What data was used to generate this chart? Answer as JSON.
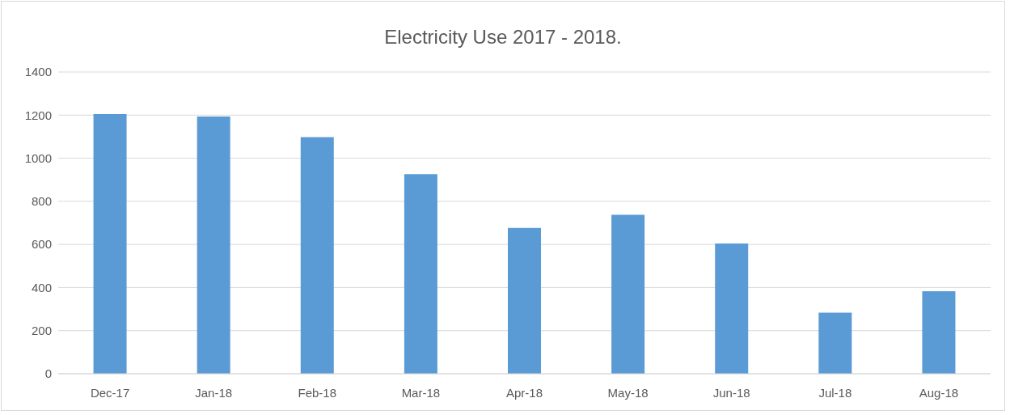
{
  "chart_data": {
    "type": "bar",
    "title": "Electricity Use 2017 - 2018.",
    "categories": [
      "Dec-17",
      "Jan-18",
      "Feb-18",
      "Mar-18",
      "Apr-18",
      "May-18",
      "Jun-18",
      "Jul-18",
      "Aug-18"
    ],
    "values": [
      1205,
      1194,
      1098,
      926,
      677,
      738,
      604,
      283,
      383
    ],
    "color": "#5b9bd5",
    "ylim": [
      0,
      1400
    ],
    "yticks": [
      0,
      200,
      400,
      600,
      800,
      1000,
      1200,
      1400
    ],
    "grid": "y"
  }
}
